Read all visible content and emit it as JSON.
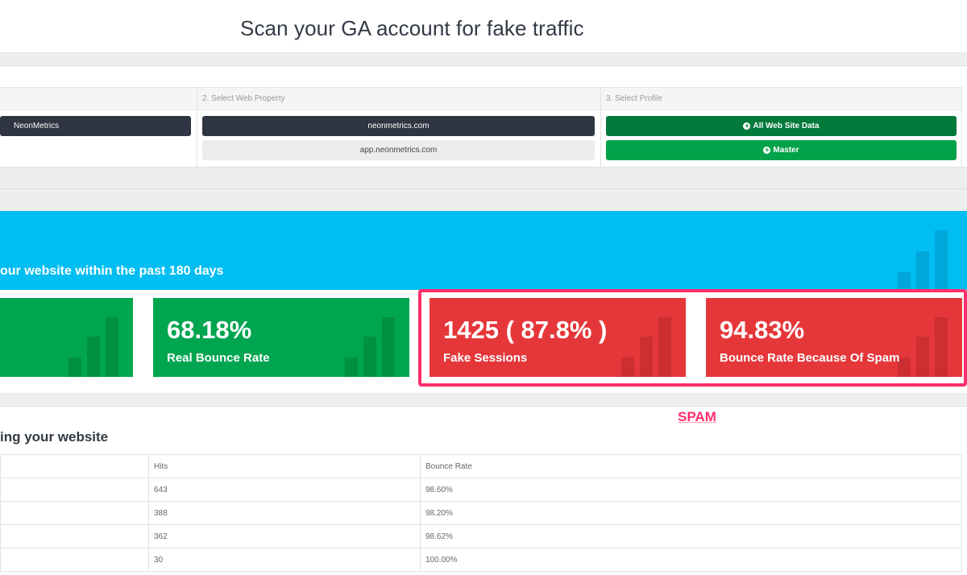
{
  "header": {
    "title": "Scan your GA account for fake traffic"
  },
  "selector": {
    "col2_title": "2. Select Web Property",
    "col3_title": "3. Select Profile",
    "account_button": "NeonMetrics",
    "properties": [
      "neonmetrics.com",
      "app.neonmetrics.com"
    ],
    "profiles": [
      "All Web Site Data",
      "Master"
    ]
  },
  "banner": {
    "text": "our website within the past 180 days"
  },
  "stats": [
    {
      "value": "68.18%",
      "label": "Real Bounce Rate",
      "color": "#00a54f"
    },
    {
      "value": "1425 ( 87.8% )",
      "label": "Fake Sessions",
      "color": "#e5373a"
    },
    {
      "value": "94.83%",
      "label": "Bounce Rate Because Of Spam",
      "color": "#e5373a"
    }
  ],
  "spam_annotation": {
    "label": "SPAM",
    "color": "#ff2e6c"
  },
  "table": {
    "title": "ing your website",
    "headers": [
      "Hits",
      "Bounce Rate"
    ],
    "rows": [
      {
        "hits": "643",
        "bounce": "98.60%"
      },
      {
        "hits": "388",
        "bounce": "98.20%"
      },
      {
        "hits": "362",
        "bounce": "98.62%"
      },
      {
        "hits": "30",
        "bounce": "100.00%"
      }
    ]
  },
  "icons": {
    "add": "plus-circle-icon",
    "chart": "bar-chart-icon"
  }
}
